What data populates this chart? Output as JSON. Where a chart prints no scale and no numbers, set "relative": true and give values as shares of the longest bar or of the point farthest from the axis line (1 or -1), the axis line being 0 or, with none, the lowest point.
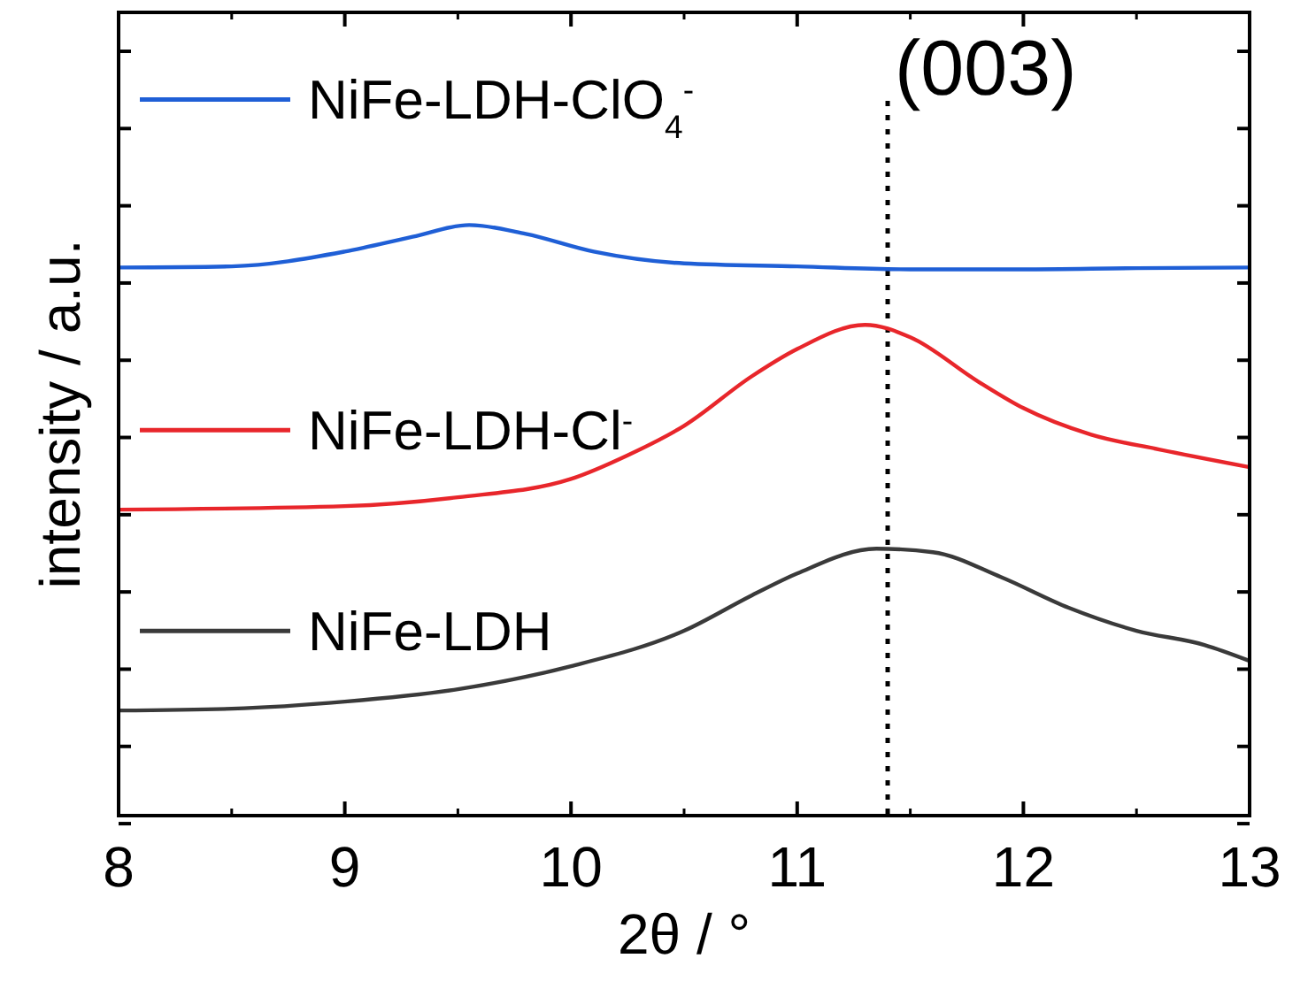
{
  "chart_data": {
    "type": "line",
    "xlabel": "2θ / °",
    "ylabel": "intensity / a.u.",
    "relative": true,
    "xlim": [
      8,
      13
    ],
    "xticks": [
      8,
      9,
      10,
      11,
      12,
      13
    ],
    "legend": "left",
    "line_style": "solid",
    "series": [
      {
        "name": "NiFe-LDH-ClO$_{4}$$^{-}$",
        "color": "#1f5fd6",
        "x": [
          8,
          8.5,
          9,
          9.3,
          9.55,
          9.8,
          10.1,
          10.5,
          11,
          11.5,
          12,
          12.5,
          13
        ],
        "values": [
          0.928,
          0.93,
          0.955,
          0.98,
          1.0,
          0.985,
          0.955,
          0.935,
          0.93,
          0.925,
          0.925,
          0.927,
          0.928
        ]
      },
      {
        "name": "NiFe-LDH-Cl$^{-}$",
        "color": "#e8262b",
        "x": [
          8,
          9,
          9.5,
          10,
          10.25,
          10.5,
          10.8,
          11,
          11.3,
          11.5,
          11.8,
          12,
          12.3,
          12.6,
          13
        ],
        "values": [
          0.518,
          0.524,
          0.539,
          0.57,
          0.61,
          0.66,
          0.744,
          0.79,
          0.831,
          0.81,
          0.735,
          0.69,
          0.645,
          0.62,
          0.59
        ]
      },
      {
        "name": "NiFe-LDH",
        "color": "#3a3a3a",
        "x": [
          8,
          8.5,
          9,
          9.5,
          10,
          10.5,
          10.8,
          11,
          11.35,
          11.6,
          11.9,
          12.2,
          12.5,
          12.8,
          13
        ],
        "values": [
          0.178,
          0.181,
          0.193,
          0.214,
          0.253,
          0.313,
          0.373,
          0.41,
          0.452,
          0.446,
          0.404,
          0.352,
          0.313,
          0.289,
          0.262
        ]
      }
    ],
    "ref_lines": [
      {
        "axis": "x",
        "value": 11.4,
        "color": "#000000",
        "line_style": "dotted"
      }
    ],
    "annotations": [
      {
        "text": "(003)",
        "x": 11.4,
        "y": 1.22
      }
    ]
  }
}
